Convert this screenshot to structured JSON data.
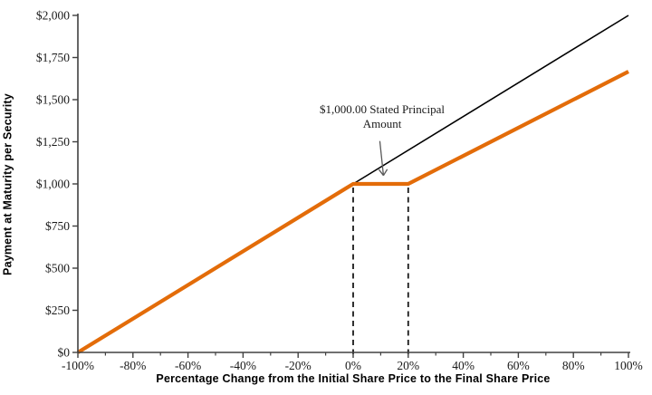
{
  "chart_data": {
    "type": "line",
    "title": "",
    "xlabel": "Percentage Change from the Initial Share Price to the Final Share Price",
    "ylabel": "Payment at Maturity per Security",
    "xlim": [
      -100,
      100
    ],
    "ylim": [
      0,
      2000
    ],
    "grid": "off",
    "legend": "none",
    "axis_color": "#404040",
    "tick_label_color": "#1a1a1a",
    "x_major_ticks": [
      -100,
      -80,
      -60,
      -40,
      -20,
      0,
      20,
      40,
      60,
      80,
      100
    ],
    "x_major_tick_labels": [
      "-100%",
      "-80%",
      "-60%",
      "-40%",
      "-20%",
      "0%",
      "20%",
      "40%",
      "60%",
      "80%",
      "100%"
    ],
    "x_minor_ticks": [
      -90,
      -70,
      -50,
      -30,
      -10,
      10,
      30,
      50,
      70,
      90
    ],
    "y_ticks": [
      0,
      250,
      500,
      750,
      1000,
      1250,
      1500,
      1750,
      2000
    ],
    "y_tick_labels": [
      "$0",
      "$250",
      "$500",
      "$750",
      "$1,000",
      "$1,250",
      "$1,500",
      "$1,750",
      "$2,000"
    ],
    "series": [
      {
        "name": "uncapped-share-performance-line",
        "color": "#000000",
        "stroke_width": 1.6,
        "points": [
          [
            0,
            1000
          ],
          [
            100,
            2000
          ]
        ]
      },
      {
        "name": "payment-at-maturity-line",
        "color": "#E36C09",
        "stroke_width": 4.2,
        "points": [
          [
            -100,
            0
          ],
          [
            0,
            1000
          ],
          [
            20,
            1000
          ],
          [
            100,
            1666.67
          ]
        ]
      }
    ],
    "guide_lines": [
      {
        "name": "dashed-guide-0pct",
        "x": 0,
        "y_from": 0,
        "y_to": 1000
      },
      {
        "name": "dashed-guide-20pct",
        "x": 20,
        "y_from": 0,
        "y_to": 1000
      }
    ],
    "annotation": {
      "line1": "$1,000.00 Stated Principal",
      "line2": "Amount",
      "arrow_target": [
        11,
        1050
      ],
      "arrow_color": "#595959"
    }
  }
}
